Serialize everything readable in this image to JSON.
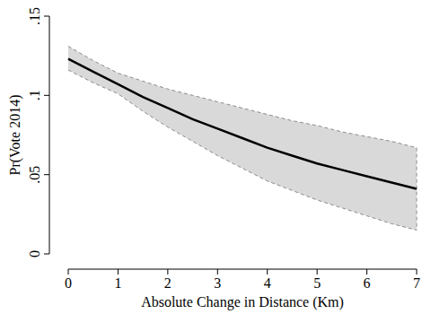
{
  "chart_data": {
    "type": "line",
    "x_label": "Absolute Change in Distance (Km)",
    "y_label": "Pr(Vote 2014)",
    "x": [
      0,
      0.5,
      1,
      1.5,
      2,
      2.5,
      3,
      3.5,
      4,
      4.5,
      5,
      5.5,
      6,
      6.5,
      7
    ],
    "values": [
      0.123,
      0.115,
      0.107,
      0.099,
      0.092,
      0.085,
      0.079,
      0.073,
      0.067,
      0.062,
      0.057,
      0.053,
      0.049,
      0.045,
      0.041
    ],
    "upper": [
      0.131,
      0.122,
      0.114,
      0.109,
      0.104,
      0.1,
      0.096,
      0.092,
      0.088,
      0.084,
      0.081,
      0.077,
      0.074,
      0.071,
      0.067
    ],
    "lower": [
      0.116,
      0.108,
      0.101,
      0.09,
      0.08,
      0.071,
      0.062,
      0.054,
      0.046,
      0.04,
      0.034,
      0.029,
      0.024,
      0.019,
      0.015
    ],
    "color": "#000000",
    "xlim": [
      0,
      7
    ],
    "xticks": [
      0,
      1,
      2,
      3,
      4,
      5,
      6,
      7
    ],
    "ylim": [
      0,
      0.15
    ],
    "yticks": [
      0,
      {
        "value": 0.05,
        "label": ".05"
      },
      {
        "value": 0.1,
        "label": ".1"
      },
      {
        "value": 0.15,
        "label": ".15"
      }
    ],
    "grid": false
  }
}
